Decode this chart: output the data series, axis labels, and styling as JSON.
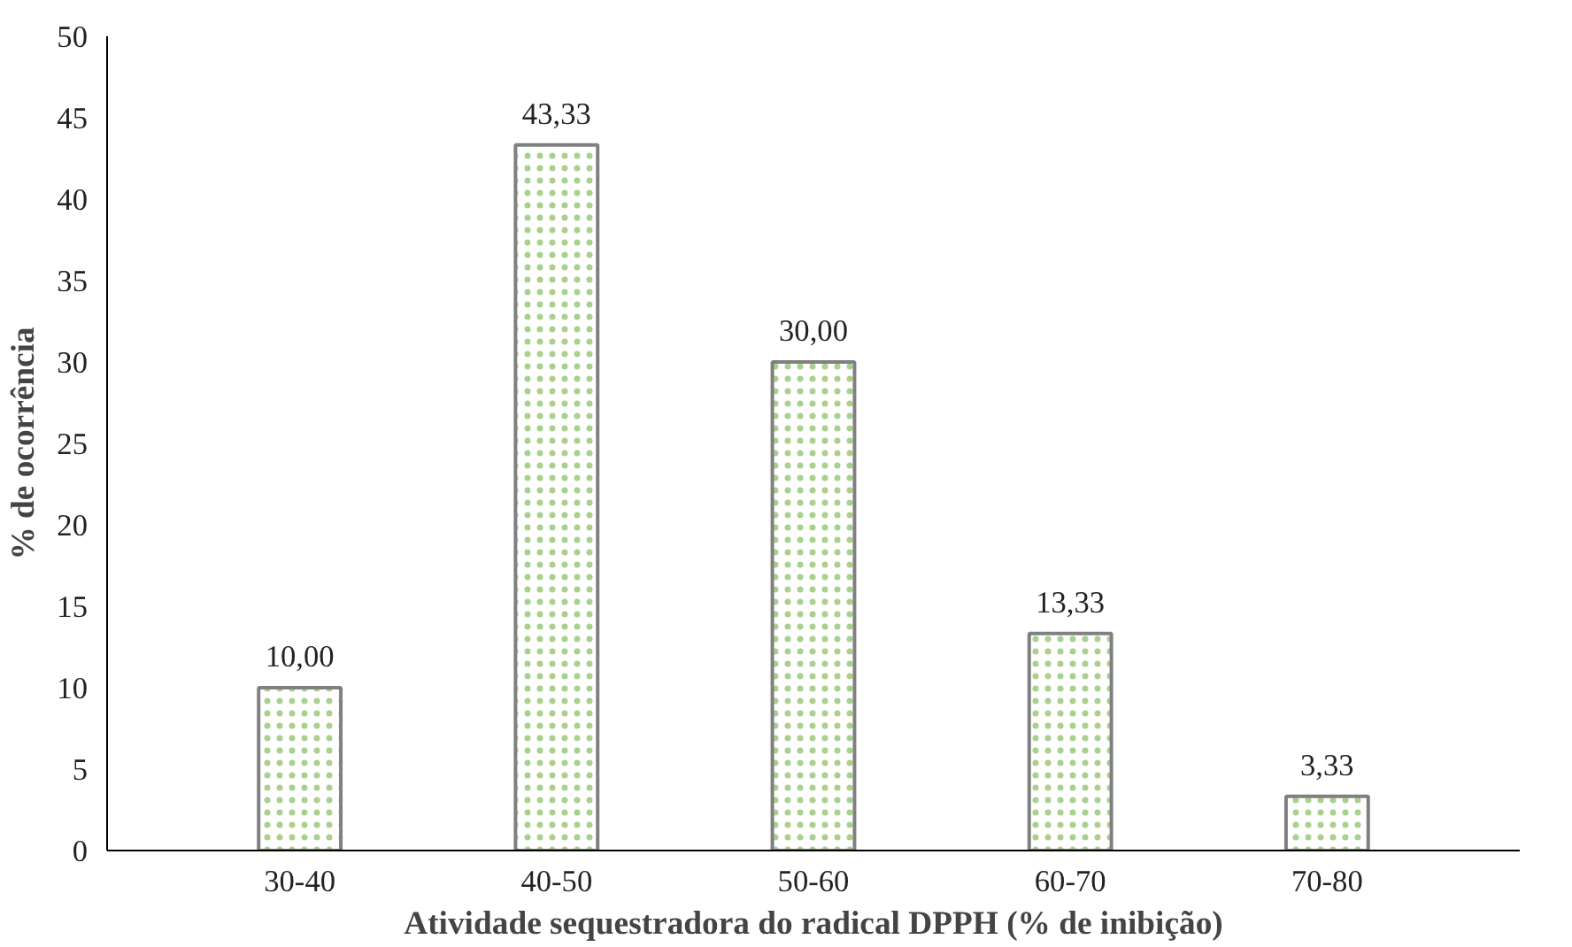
{
  "chart_data": {
    "type": "bar",
    "xlabel": "Atividade sequestradora do radical DPPH (% de inibição)",
    "ylabel": "% de ocorrência",
    "categories": [
      "30-40",
      "40-50",
      "50-60",
      "60-70",
      "70-80"
    ],
    "values": [
      10.0,
      43.33,
      30.0,
      13.33,
      3.33
    ],
    "value_labels": [
      "10,00",
      "43,33",
      "30,00",
      "13,33",
      "3,33"
    ],
    "color": "#808080",
    "ylim": [
      0,
      50
    ],
    "yticks": [
      0,
      5,
      10,
      15,
      20,
      25,
      30,
      35,
      40,
      45,
      50
    ],
    "grid": false
  }
}
